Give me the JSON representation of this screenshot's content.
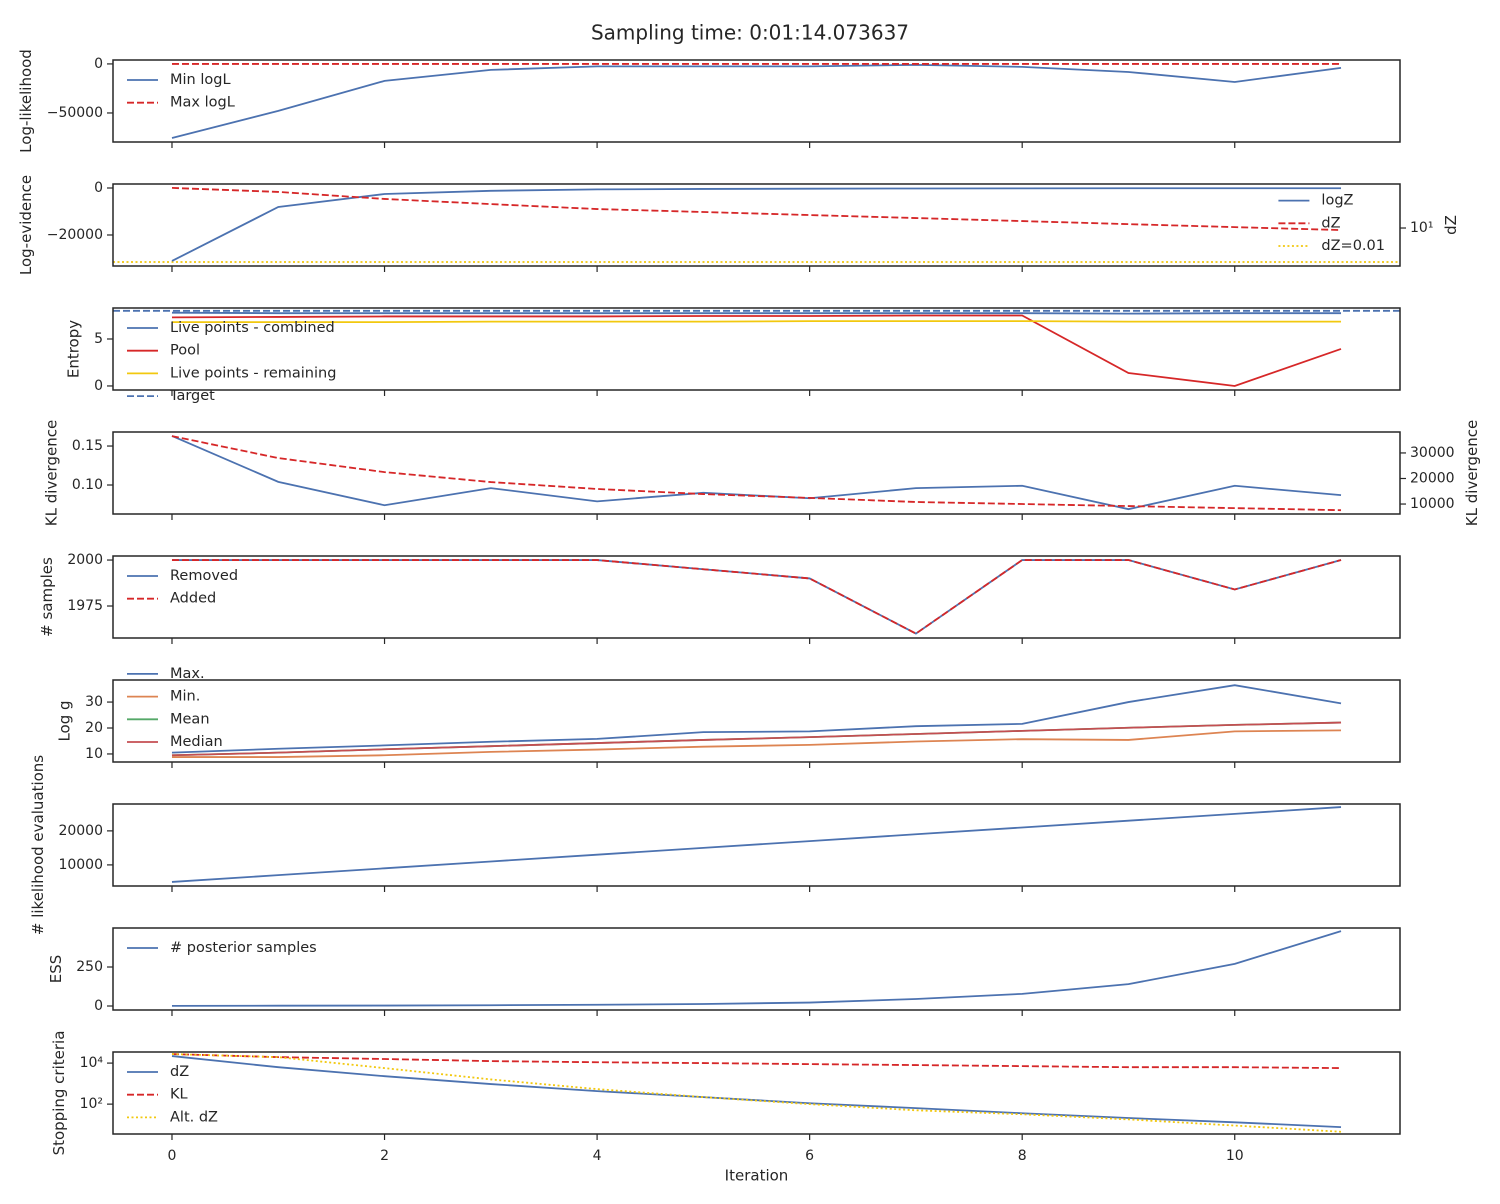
{
  "title": "Sampling time: 0:01:14.073637",
  "chart_data": [
    {
      "type": "line",
      "ylabel": "Log-likelihood",
      "x": [
        0,
        1,
        2,
        3,
        4,
        5,
        6,
        7,
        8,
        9,
        10,
        11
      ],
      "xlim": [
        -0.555,
        11.555
      ],
      "xticks": [
        0,
        2,
        4,
        6,
        8,
        10
      ],
      "ylim": [
        -79600,
        4000
      ],
      "yticks": [
        {
          "value": -50000,
          "label": "−50000"
        },
        0
      ],
      "legend": "upper left",
      "series": [
        {
          "name": "Min logL",
          "color": "#4c72b0",
          "dash": "solid",
          "values": [
            -75500,
            -47900,
            -17300,
            -6100,
            -2500,
            -2500,
            -2500,
            -1000,
            -3000,
            -8200,
            -18400,
            -4000
          ]
        },
        {
          "name": "Max logL",
          "color": "#d62728",
          "dash": "dashed",
          "values": [
            0,
            0,
            0,
            0,
            0,
            0,
            0,
            0,
            0,
            0,
            0,
            0
          ]
        }
      ]
    },
    {
      "type": "line",
      "ylabel": "Log-evidence",
      "y2label": "dZ",
      "x": [
        0,
        1,
        2,
        3,
        4,
        5,
        6,
        7,
        8,
        9,
        10,
        11
      ],
      "xlim": [
        -0.555,
        11.555
      ],
      "xticks": [
        0,
        2,
        4,
        6,
        8,
        10
      ],
      "ylim": [
        -33200,
        1700
      ],
      "yticks": [
        {
          "value": -20000,
          "label": "−20000"
        },
        0
      ],
      "y2lim": [
        0.0044,
        77600
      ],
      "y2log": true,
      "y2ticks": [
        {
          "value": 10,
          "label": "10¹"
        }
      ],
      "legend": "lower right",
      "series": [
        {
          "name": "logZ",
          "color": "#4c72b0",
          "dash": "solid",
          "values": [
            -31060,
            -8085,
            -2550,
            -1200,
            -600,
            -400,
            -300,
            -200,
            -150,
            -120,
            -100,
            -100
          ]
        },
        {
          "name": "dZ",
          "color": "#d62728",
          "dash": "dashed",
          "axis": "y2",
          "values": [
            35000,
            15500,
            3700,
            1300,
            475,
            260,
            140,
            76,
            41,
            22,
            12,
            6.6
          ]
        }
      ],
      "hlines": [
        {
          "name": "dZ=0.01",
          "value": 0.01,
          "color": "#f2c80f",
          "dash": "dotted",
          "axis": "y2"
        }
      ]
    },
    {
      "type": "line",
      "ylabel": "Entropy",
      "x": [
        0,
        1,
        2,
        3,
        4,
        5,
        6,
        7,
        8,
        9,
        10,
        11
      ],
      "xlim": [
        -0.555,
        11.555
      ],
      "xticks": [
        0,
        2,
        4,
        6,
        8,
        10
      ],
      "ylim": [
        -0.43,
        8.3
      ],
      "yticks": [
        0,
        5
      ],
      "legend": "upper left",
      "series": [
        {
          "name": "Live points - combined",
          "color": "#4c72b0",
          "dash": "solid",
          "values": [
            7.8,
            7.75,
            7.75,
            7.75,
            7.75,
            7.75,
            7.75,
            7.75,
            7.75,
            7.7,
            7.75,
            7.75
          ]
        },
        {
          "name": "Pool",
          "color": "#d62728",
          "dash": "solid",
          "values": [
            7.3,
            7.35,
            7.4,
            7.4,
            7.4,
            7.45,
            7.45,
            7.5,
            7.5,
            1.38,
            0,
            3.94
          ]
        },
        {
          "name": "Live points - remaining",
          "color": "#f2c80f",
          "dash": "solid",
          "values": [
            6.8,
            6.8,
            6.8,
            6.85,
            6.85,
            6.85,
            6.9,
            6.9,
            6.9,
            6.85,
            6.85,
            6.85
          ]
        }
      ],
      "hlines": [
        {
          "name": "Target",
          "value": 8.0,
          "color": "#4c72b0",
          "dash": "dashed"
        }
      ]
    },
    {
      "type": "line",
      "ylabel": "KL divergence",
      "y2label": "KL divergence",
      "x": [
        0,
        1,
        2,
        3,
        4,
        5,
        6,
        7,
        8,
        9,
        10,
        11
      ],
      "xlim": [
        -0.555,
        11.555
      ],
      "xticks": [
        0,
        2,
        4,
        6,
        8,
        10
      ],
      "ylim": [
        0.0628,
        0.168
      ],
      "yticks": [
        {
          "value": 0.1,
          "label": "0.10"
        },
        0.15
      ],
      "y2lim": [
        6100,
        38200
      ],
      "y2ticks": [
        10000,
        20000,
        30000
      ],
      "series": [
        {
          "color": "#4c72b0",
          "dash": "solid",
          "values": [
            0.163,
            0.104,
            0.074,
            0.096,
            0.079,
            0.09,
            0.083,
            0.096,
            0.099,
            0.069,
            0.099,
            0.087
          ]
        },
        {
          "color": "#d62728",
          "dash": "dashed",
          "axis": "y2",
          "values": [
            36600,
            28000,
            22500,
            18600,
            15900,
            13900,
            12400,
            10800,
            10000,
            9200,
            8400,
            7600
          ]
        }
      ]
    },
    {
      "type": "line",
      "ylabel": "# samples",
      "x": [
        0,
        1,
        2,
        3,
        4,
        5,
        6,
        7,
        8,
        9,
        10,
        11
      ],
      "xlim": [
        -0.555,
        11.555
      ],
      "xticks": [
        0,
        2,
        4,
        6,
        8,
        10
      ],
      "ylim": [
        1957.6,
        2002.2
      ],
      "yticks": [
        1975,
        2000
      ],
      "legend": "upper left",
      "series": [
        {
          "name": "Removed",
          "color": "#4c72b0",
          "dash": "solid",
          "values": [
            2000,
            2000,
            2000,
            2000,
            2000,
            1995,
            1990,
            1960,
            2000,
            2000,
            1984,
            2000
          ]
        },
        {
          "name": "Added",
          "color": "#d62728",
          "dash": "dashed",
          "values": [
            2000,
            2000,
            2000,
            2000,
            2000,
            1995,
            1990,
            1960,
            2000,
            2000,
            1984,
            2000
          ]
        }
      ]
    },
    {
      "type": "line",
      "ylabel": "Log g",
      "x": [
        0,
        1,
        2,
        3,
        4,
        5,
        6,
        7,
        8,
        9,
        10,
        11
      ],
      "xlim": [
        -0.555,
        11.555
      ],
      "xticks": [
        0,
        2,
        4,
        6,
        8,
        10
      ],
      "ylim": [
        6.9,
        38.5
      ],
      "yticks": [
        10,
        20,
        30
      ],
      "legend": "lower left",
      "series": [
        {
          "name": "Max.",
          "color": "#4c72b0",
          "dash": "solid",
          "values": [
            10.5,
            12,
            13.3,
            14.7,
            15.8,
            18.4,
            18.7,
            20.7,
            21.6,
            30,
            36.5,
            29.5
          ]
        },
        {
          "name": "Min.",
          "color": "#dd8452",
          "dash": "solid",
          "values": [
            8.8,
            8.8,
            9.5,
            10.8,
            11.7,
            12.8,
            13.5,
            14.8,
            15.7,
            15.4,
            18.7,
            19.1
          ]
        },
        {
          "name": "Mean",
          "color": "#55a868",
          "dash": "solid",
          "values": [
            9.5,
            10.5,
            11.8,
            13,
            14.2,
            15.4,
            16.5,
            17.7,
            18.9,
            20.1,
            21.2,
            22.1
          ]
        },
        {
          "name": "Median",
          "color": "#c44e52",
          "dash": "solid",
          "values": [
            9.5,
            10.5,
            11.8,
            13,
            14.2,
            15.4,
            16.5,
            17.7,
            18.9,
            20.1,
            21.2,
            22.1
          ]
        }
      ]
    },
    {
      "type": "line",
      "ylabel": "# likelihood evaluations",
      "x": [
        0,
        1,
        2,
        3,
        4,
        5,
        6,
        7,
        8,
        9,
        10,
        11
      ],
      "xlim": [
        -0.555,
        11.555
      ],
      "xticks": [
        0,
        2,
        4,
        6,
        8,
        10
      ],
      "ylim": [
        3800,
        27900
      ],
      "yticks": [
        10000,
        20000
      ],
      "series": [
        {
          "color": "#4c72b0",
          "dash": "solid",
          "values": [
            5000,
            7000,
            9000,
            11000,
            13000,
            15000,
            17000,
            19000,
            21000,
            23000,
            25000,
            27000
          ]
        }
      ]
    },
    {
      "type": "line",
      "ylabel": "ESS",
      "x": [
        0,
        1,
        2,
        3,
        4,
        5,
        6,
        7,
        8,
        9,
        10,
        11
      ],
      "xlim": [
        -0.555,
        11.555
      ],
      "xticks": [
        0,
        2,
        4,
        6,
        8,
        10
      ],
      "ylim": [
        -25.6,
        500
      ],
      "yticks": [
        0,
        250
      ],
      "legend": "upper left",
      "series": [
        {
          "name": "# posterior samples",
          "color": "#4c72b0",
          "dash": "solid",
          "values": [
            1,
            2,
            3,
            5,
            8,
            13,
            22,
            45,
            78,
            140,
            270,
            480
          ]
        }
      ]
    },
    {
      "type": "line",
      "ylabel": "Stopping criteria",
      "xlabel": "Iteration",
      "x": [
        0,
        1,
        2,
        3,
        4,
        5,
        6,
        7,
        8,
        9,
        10,
        11
      ],
      "xlim": [
        -0.555,
        11.555
      ],
      "xticks": [
        0,
        2,
        4,
        6,
        8,
        10
      ],
      "ylim": [
        3.5,
        34700
      ],
      "ylog": true,
      "yticks": [
        {
          "value": 100,
          "label": "10²"
        },
        {
          "value": 10000,
          "label": "10⁴"
        }
      ],
      "legend": "upper left",
      "series": [
        {
          "name": "dZ",
          "color": "#4c72b0",
          "dash": "solid",
          "values": [
            22000,
            6300,
            2300,
            950,
            430,
            220,
            110,
            64,
            36,
            21,
            13,
            7.6
          ]
        },
        {
          "name": "KL",
          "color": "#d62728",
          "dash": "dashed",
          "values": [
            27500,
            19500,
            15800,
            12500,
            11000,
            10000,
            8900,
            8000,
            7100,
            6300,
            6300,
            5700
          ]
        },
        {
          "name": "Alt. dZ",
          "color": "#f2c80f",
          "dash": "dotted",
          "values": [
            27500,
            19500,
            5700,
            1600,
            540,
            220,
            100,
            50,
            32,
            18,
            9,
            4.5
          ]
        }
      ]
    }
  ]
}
